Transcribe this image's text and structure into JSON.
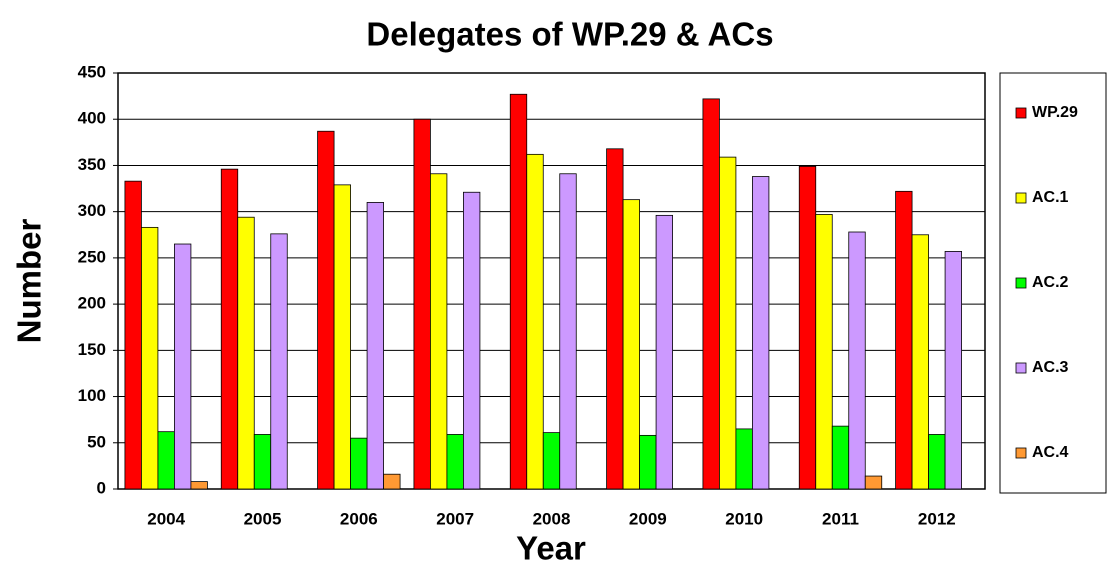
{
  "chart_data": {
    "type": "bar",
    "title": "Delegates of WP.29 & ACs",
    "x_label": "Year",
    "y_label": "Number",
    "categories": [
      "2004",
      "2005",
      "2006",
      "2007",
      "2008",
      "2009",
      "2010",
      "2011",
      "2012"
    ],
    "series": [
      {
        "name": "WP.29",
        "color": "#ff0000",
        "values": [
          333,
          346,
          387,
          400,
          427,
          368,
          422,
          349,
          322
        ]
      },
      {
        "name": "AC.1",
        "color": "#ffff00",
        "values": [
          283,
          294,
          329,
          341,
          362,
          313,
          359,
          297,
          275
        ]
      },
      {
        "name": "AC.2",
        "color": "#00ff00",
        "values": [
          62,
          59,
          55,
          59,
          61,
          58,
          65,
          68,
          59
        ]
      },
      {
        "name": "AC.3",
        "color": "#cc99ff",
        "values": [
          265,
          276,
          310,
          321,
          341,
          296,
          338,
          278,
          257
        ]
      },
      {
        "name": "AC.4",
        "color": "#ff9933",
        "values": [
          8,
          null,
          16,
          null,
          null,
          null,
          null,
          14,
          null
        ]
      }
    ],
    "ylim": [
      0,
      450
    ],
    "yticks": [
      0,
      50,
      100,
      150,
      200,
      250,
      300,
      350,
      400,
      450
    ],
    "grid": true,
    "legend": "right"
  }
}
